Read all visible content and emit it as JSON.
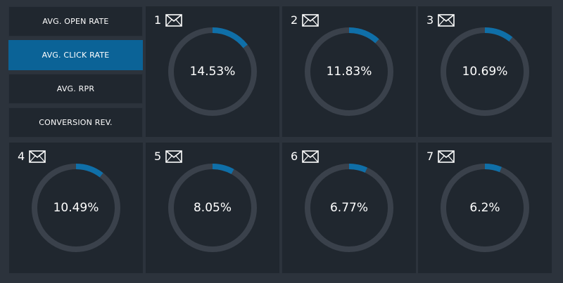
{
  "metrics": [
    {
      "label": "AVG. OPEN RATE",
      "active": false
    },
    {
      "label": "AVG. CLICK RATE",
      "active": true
    },
    {
      "label": "AVG. RPR",
      "active": false
    },
    {
      "label": "CONVERSION REV.",
      "active": false
    }
  ],
  "cards": [
    {
      "rank": "1",
      "icon": "mail-icon",
      "value_label": "14.53%",
      "value": 14.53
    },
    {
      "rank": "2",
      "icon": "mail-icon",
      "value_label": "11.83%",
      "value": 11.83
    },
    {
      "rank": "3",
      "icon": "mail-icon",
      "value_label": "10.69%",
      "value": 10.69
    },
    {
      "rank": "4",
      "icon": "mail-icon",
      "value_label": "10.49%",
      "value": 10.49
    },
    {
      "rank": "5",
      "icon": "mail-icon",
      "value_label": "8.05%",
      "value": 8.05
    },
    {
      "rank": "6",
      "icon": "mail-icon",
      "value_label": "6.77%",
      "value": 6.77
    },
    {
      "rank": "7",
      "icon": "mail-icon",
      "value_label": "6.2%",
      "value": 6.2
    }
  ],
  "colors": {
    "page_background": "#2c333c",
    "card_background": "#20272f",
    "active_button": "#0b6397",
    "gauge_track": "#3a414b",
    "gauge_fill": "#0f6fa8",
    "text": "#ffffff"
  }
}
